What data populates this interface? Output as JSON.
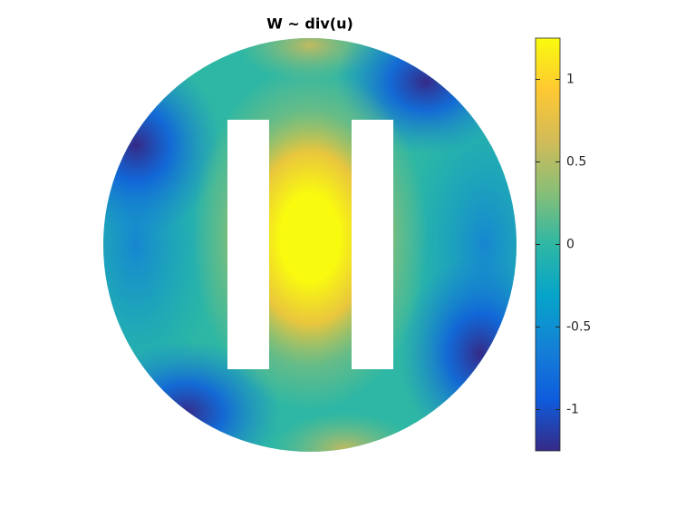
{
  "chart_data": {
    "type": "field",
    "title": "W ~ div(u)",
    "colormap": [
      "#352a87",
      "#0f5cdd",
      "#1481d6",
      "#06a4ca",
      "#2eb7a4",
      "#87bf77",
      "#d1bb59",
      "#fec832",
      "#f9fb0e"
    ],
    "clim": [
      -1.25,
      1.25
    ],
    "cticks": [
      -1,
      -0.5,
      0,
      0.5,
      1
    ]
  }
}
